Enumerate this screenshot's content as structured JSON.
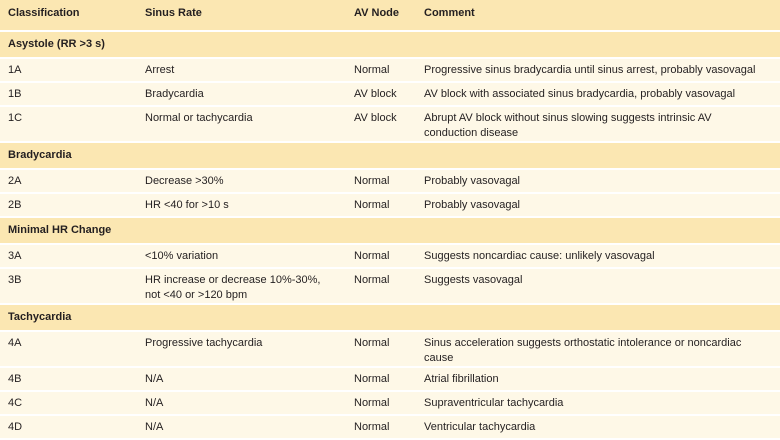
{
  "table": {
    "headers": [
      "Classification",
      "Sinus Rate",
      "AV Node",
      "Comment"
    ],
    "sections": [
      {
        "title": "Asystole (RR >3 s)",
        "rows": [
          [
            "1A",
            "Arrest",
            "Normal",
            "Progressive sinus bradycardia until sinus arrest, probably vasovagal"
          ],
          [
            "1B",
            "Bradycardia",
            "AV block",
            "AV block with associated sinus bradycardia, probably vasovagal"
          ],
          [
            "1C",
            "Normal or tachycardia",
            "AV block",
            "Abrupt AV block without sinus slowing suggests intrinsic AV conduction disease"
          ]
        ]
      },
      {
        "title": "Bradycardia",
        "rows": [
          [
            "2A",
            "Decrease >30%",
            "Normal",
            "Probably vasovagal"
          ],
          [
            "2B",
            "HR <40 for >10 s",
            "Normal",
            "Probably vasovagal"
          ]
        ]
      },
      {
        "title": "Minimal HR Change",
        "rows": [
          [
            "3A",
            "<10% variation",
            "Normal",
            "Suggests noncardiac cause: unlikely vasovagal"
          ],
          [
            "3B",
            "HR increase or decrease 10%-30%, not <40 or >120 bpm",
            "Normal",
            "Suggests vasovagal"
          ]
        ]
      },
      {
        "title": "Tachycardia",
        "rows": [
          [
            "4A",
            "Progressive tachycardia",
            "Normal",
            "Sinus acceleration suggests orthostatic intolerance or noncardiac cause"
          ],
          [
            "4B",
            "N/A",
            "Normal",
            "Atrial fibrillation"
          ],
          [
            "4C",
            "N/A",
            "Normal",
            "Supraventricular tachycardia"
          ],
          [
            "4D",
            "N/A",
            "Normal",
            "Ventricular tachycardia"
          ]
        ]
      }
    ]
  }
}
